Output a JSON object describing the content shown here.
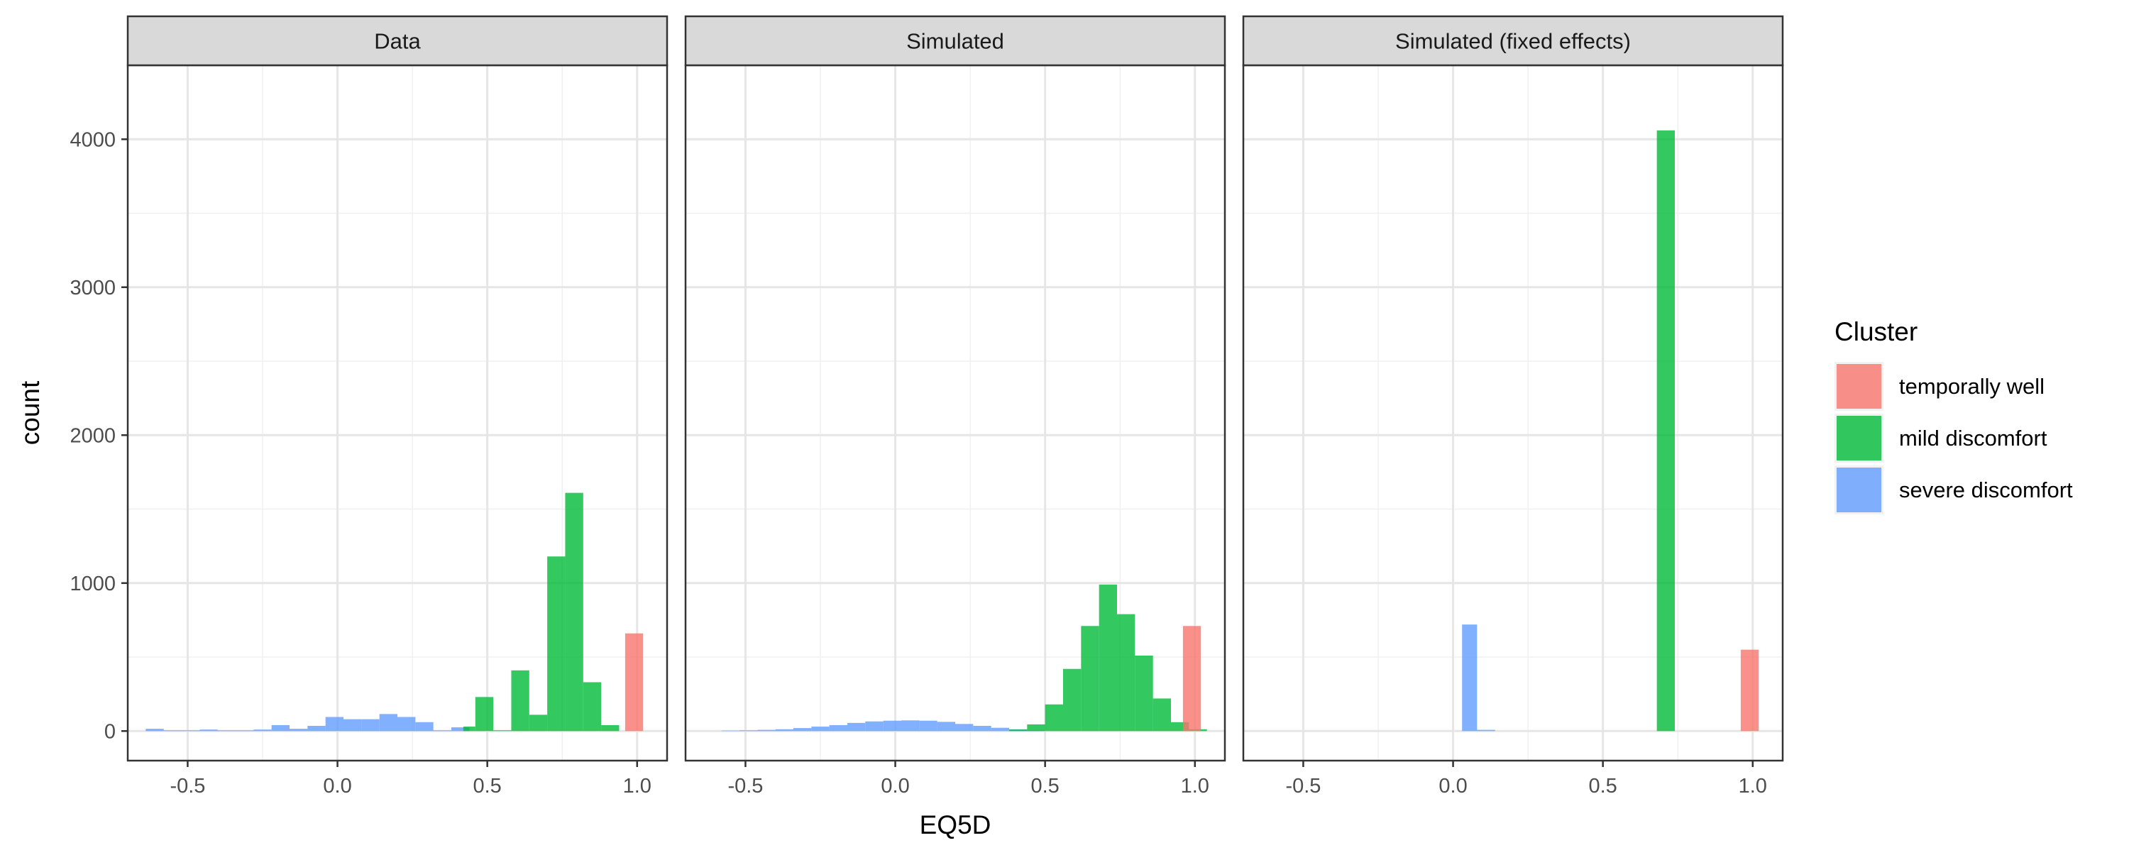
{
  "chart_data": {
    "type": "bar",
    "subtype": "faceted-histogram",
    "xlabel": "EQ5D",
    "ylabel": "count",
    "xlim": [
      -0.7,
      1.1
    ],
    "ylim": [
      -200,
      4500
    ],
    "x_ticks": [
      "-0.5",
      "0.0",
      "0.5",
      "1.0"
    ],
    "x_tick_values": [
      -0.5,
      0.0,
      0.5,
      1.0
    ],
    "y_ticks": [
      "0",
      "1000",
      "2000",
      "3000",
      "4000"
    ],
    "y_tick_values": [
      0,
      1000,
      2000,
      3000,
      4000
    ],
    "grid": true,
    "legend": {
      "title": "Cluster",
      "position": "right",
      "entries": [
        {
          "label": "temporally well",
          "color": "#F8766D"
        },
        {
          "label": "mild discomfort",
          "color": "#00BA38"
        },
        {
          "label": "severe discomfort",
          "color": "#619CFF"
        }
      ]
    },
    "bar_opacity": 0.8,
    "facets": [
      {
        "title": "Data",
        "series": [
          {
            "name": "severe discomfort",
            "color": "#619CFF",
            "bins": [
              [
                -0.64,
                -0.58,
                15
              ],
              [
                -0.58,
                -0.52,
                5
              ],
              [
                -0.52,
                -0.46,
                5
              ],
              [
                -0.46,
                -0.4,
                10
              ],
              [
                -0.4,
                -0.34,
                5
              ],
              [
                -0.34,
                -0.28,
                5
              ],
              [
                -0.28,
                -0.22,
                10
              ],
              [
                -0.22,
                -0.16,
                40
              ],
              [
                -0.16,
                -0.1,
                15
              ],
              [
                -0.1,
                -0.04,
                35
              ],
              [
                -0.04,
                0.02,
                95
              ],
              [
                0.02,
                0.08,
                80
              ],
              [
                0.08,
                0.14,
                80
              ],
              [
                0.14,
                0.2,
                115
              ],
              [
                0.2,
                0.26,
                95
              ],
              [
                0.26,
                0.32,
                60
              ],
              [
                0.32,
                0.38,
                5
              ],
              [
                0.38,
                0.44,
                25
              ]
            ]
          },
          {
            "name": "mild discomfort",
            "color": "#00BA38",
            "bins": [
              [
                0.42,
                0.46,
                30
              ],
              [
                0.46,
                0.52,
                230
              ],
              [
                0.52,
                0.58,
                5
              ],
              [
                0.58,
                0.64,
                410
              ],
              [
                0.64,
                0.7,
                110
              ],
              [
                0.7,
                0.76,
                1180
              ],
              [
                0.76,
                0.82,
                1610
              ],
              [
                0.82,
                0.88,
                330
              ],
              [
                0.88,
                0.94,
                40
              ]
            ]
          },
          {
            "name": "temporally well",
            "color": "#F8766D",
            "bins": [
              [
                0.96,
                1.02,
                660
              ]
            ]
          }
        ]
      },
      {
        "title": "Simulated",
        "series": [
          {
            "name": "severe discomfort",
            "color": "#619CFF",
            "bins": [
              [
                -0.58,
                -0.52,
                3
              ],
              [
                -0.52,
                -0.46,
                5
              ],
              [
                -0.46,
                -0.4,
                8
              ],
              [
                -0.4,
                -0.34,
                12
              ],
              [
                -0.34,
                -0.28,
                20
              ],
              [
                -0.28,
                -0.22,
                30
              ],
              [
                -0.22,
                -0.16,
                40
              ],
              [
                -0.16,
                -0.1,
                55
              ],
              [
                -0.1,
                -0.04,
                65
              ],
              [
                -0.04,
                0.02,
                70
              ],
              [
                0.02,
                0.08,
                72
              ],
              [
                0.08,
                0.14,
                70
              ],
              [
                0.14,
                0.2,
                62
              ],
              [
                0.2,
                0.26,
                48
              ],
              [
                0.26,
                0.32,
                35
              ],
              [
                0.32,
                0.38,
                22
              ],
              [
                0.38,
                0.44,
                12
              ],
              [
                0.44,
                0.5,
                5
              ]
            ]
          },
          {
            "name": "mild discomfort",
            "color": "#00BA38",
            "bins": [
              [
                0.38,
                0.44,
                10
              ],
              [
                0.44,
                0.5,
                45
              ],
              [
                0.5,
                0.56,
                180
              ],
              [
                0.56,
                0.62,
                420
              ],
              [
                0.62,
                0.68,
                710
              ],
              [
                0.68,
                0.74,
                990
              ],
              [
                0.74,
                0.8,
                790
              ],
              [
                0.8,
                0.86,
                510
              ],
              [
                0.86,
                0.92,
                220
              ],
              [
                0.92,
                0.98,
                60
              ],
              [
                0.98,
                1.04,
                12
              ]
            ]
          },
          {
            "name": "temporally well",
            "color": "#F8766D",
            "bins": [
              [
                0.96,
                1.02,
                710
              ]
            ]
          }
        ]
      },
      {
        "title": "Simulated (fixed effects)",
        "series": [
          {
            "name": "severe discomfort",
            "color": "#619CFF",
            "bins": [
              [
                0.03,
                0.08,
                720
              ],
              [
                0.08,
                0.14,
                8
              ]
            ]
          },
          {
            "name": "mild discomfort",
            "color": "#00BA38",
            "bins": [
              [
                0.68,
                0.74,
                4060
              ]
            ]
          },
          {
            "name": "temporally well",
            "color": "#F8766D",
            "bins": [
              [
                0.96,
                1.02,
                550
              ]
            ]
          }
        ]
      }
    ]
  }
}
